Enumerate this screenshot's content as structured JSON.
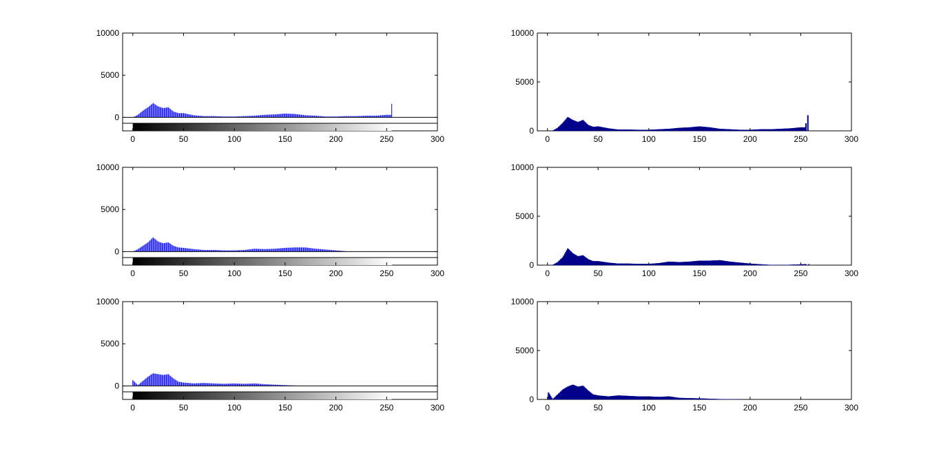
{
  "window": {
    "background": "#ffffff"
  },
  "colors": {
    "thin_bars": "#0000ff",
    "filled_bars": "#00008b",
    "axes": "#000000"
  },
  "chart_data": [
    {
      "type": "bar",
      "style": "imhist-stem",
      "colorbar": "grayscale",
      "xlim": [
        -10,
        300
      ],
      "ylim": [
        -700,
        10000
      ],
      "xticks": [
        0,
        50,
        100,
        150,
        200,
        250,
        300
      ],
      "yticks": [
        0,
        5000,
        10000
      ],
      "grid": false,
      "x": [
        0,
        5,
        10,
        15,
        20,
        25,
        30,
        35,
        40,
        45,
        50,
        60,
        70,
        80,
        90,
        100,
        110,
        120,
        130,
        140,
        150,
        160,
        170,
        180,
        190,
        200,
        210,
        220,
        230,
        240,
        250,
        254,
        255
      ],
      "values": [
        0,
        300,
        800,
        1200,
        1700,
        1300,
        1100,
        1200,
        700,
        500,
        500,
        250,
        150,
        150,
        100,
        100,
        150,
        200,
        300,
        350,
        450,
        400,
        250,
        200,
        100,
        100,
        150,
        150,
        200,
        200,
        300,
        300,
        1600
      ]
    },
    {
      "type": "bar",
      "style": "filled",
      "xlim": [
        -10,
        300
      ],
      "ylim": [
        0,
        10000
      ],
      "xticks": [
        0,
        50,
        100,
        150,
        200,
        250,
        300
      ],
      "yticks": [
        0,
        5000,
        10000
      ],
      "grid": false,
      "x": [
        0,
        5,
        10,
        15,
        20,
        25,
        30,
        35,
        40,
        45,
        50,
        60,
        70,
        80,
        90,
        100,
        110,
        120,
        130,
        140,
        150,
        160,
        170,
        180,
        190,
        200,
        210,
        220,
        230,
        240,
        250,
        254,
        257
      ],
      "values": [
        0,
        0,
        300,
        800,
        1400,
        1100,
        900,
        1100,
        600,
        400,
        450,
        250,
        120,
        120,
        100,
        100,
        150,
        200,
        300,
        350,
        450,
        350,
        200,
        150,
        100,
        100,
        150,
        150,
        200,
        250,
        350,
        350,
        1600
      ]
    },
    {
      "type": "bar",
      "style": "imhist-stem",
      "colorbar": "grayscale",
      "xlim": [
        -10,
        300
      ],
      "ylim": [
        -700,
        10000
      ],
      "xticks": [
        0,
        50,
        100,
        150,
        200,
        250,
        300
      ],
      "yticks": [
        0,
        5000,
        10000
      ],
      "grid": false,
      "x": [
        0,
        5,
        10,
        15,
        20,
        25,
        30,
        35,
        40,
        45,
        50,
        60,
        70,
        80,
        90,
        100,
        110,
        120,
        130,
        140,
        150,
        160,
        170,
        180,
        190,
        200,
        210,
        220
      ],
      "values": [
        0,
        300,
        700,
        1100,
        1700,
        1200,
        1000,
        1100,
        700,
        500,
        450,
        300,
        200,
        200,
        150,
        150,
        200,
        350,
        300,
        350,
        450,
        500,
        500,
        350,
        250,
        150,
        50,
        0
      ]
    },
    {
      "type": "bar",
      "style": "filled",
      "xlim": [
        -10,
        300
      ],
      "ylim": [
        0,
        10000
      ],
      "xticks": [
        0,
        50,
        100,
        150,
        200,
        250,
        300
      ],
      "yticks": [
        0,
        5000,
        10000
      ],
      "grid": false,
      "x": [
        0,
        5,
        10,
        15,
        20,
        25,
        30,
        35,
        40,
        45,
        50,
        60,
        70,
        80,
        90,
        100,
        110,
        120,
        130,
        140,
        150,
        160,
        170,
        180,
        190,
        200,
        210,
        220,
        230,
        258
      ],
      "values": [
        0,
        0,
        300,
        800,
        1700,
        1200,
        900,
        1000,
        600,
        400,
        400,
        250,
        150,
        150,
        120,
        120,
        200,
        350,
        300,
        350,
        450,
        450,
        500,
        350,
        250,
        150,
        80,
        20,
        0,
        100
      ]
    },
    {
      "type": "bar",
      "style": "imhist-stem",
      "colorbar": "grayscale",
      "xlim": [
        -10,
        300
      ],
      "ylim": [
        -700,
        10000
      ],
      "xticks": [
        0,
        50,
        100,
        150,
        200,
        250,
        300
      ],
      "yticks": [
        0,
        5000,
        10000
      ],
      "grid": false,
      "x": [
        0,
        5,
        10,
        15,
        20,
        25,
        30,
        35,
        40,
        45,
        50,
        60,
        70,
        80,
        90,
        100,
        110,
        120,
        130,
        140,
        150,
        160,
        170,
        180
      ],
      "values": [
        700,
        100,
        600,
        1100,
        1500,
        1400,
        1300,
        1400,
        900,
        500,
        400,
        300,
        350,
        300,
        250,
        300,
        250,
        300,
        200,
        150,
        100,
        50,
        20,
        0
      ]
    },
    {
      "type": "bar",
      "style": "filled",
      "xlim": [
        -10,
        300
      ],
      "ylim": [
        0,
        10000
      ],
      "xticks": [
        0,
        50,
        100,
        150,
        200,
        250,
        300
      ],
      "yticks": [
        0,
        5000,
        10000
      ],
      "grid": false,
      "x": [
        0,
        1,
        5,
        10,
        15,
        20,
        25,
        30,
        35,
        40,
        45,
        50,
        60,
        70,
        80,
        90,
        100,
        110,
        120,
        130,
        140,
        150,
        160,
        170,
        180,
        190,
        200
      ],
      "values": [
        0,
        700,
        0,
        500,
        1000,
        1300,
        1500,
        1300,
        1400,
        900,
        500,
        400,
        300,
        400,
        350,
        300,
        300,
        250,
        300,
        150,
        120,
        100,
        60,
        30,
        10,
        0,
        0
      ]
    }
  ]
}
